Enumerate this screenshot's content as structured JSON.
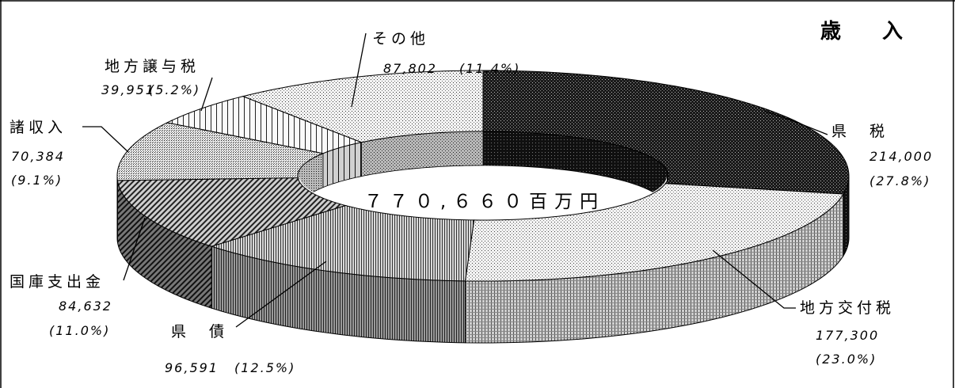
{
  "chart_data": {
    "type": "pie",
    "variant": "donut-3d",
    "title": "歳　　入",
    "center_label": "７７０,６６０百万円",
    "series": [
      {
        "name": "県　税",
        "value": 214000,
        "value_label": "214,000",
        "percent_label": "(27.8%)",
        "fill": "dark-cross"
      },
      {
        "name": "地方交付税",
        "value": 177300,
        "value_label": "177,300",
        "percent_label": "(23.0%)",
        "fill": "light-grid"
      },
      {
        "name": "県　債",
        "value": 96591,
        "value_label": "96,591",
        "percent_label": "(12.5%)",
        "fill": "vertical-lines"
      },
      {
        "name": "国庫支出金",
        "value": 84632,
        "value_label": "84,632",
        "percent_label": "(11.0%)",
        "fill": "diagonal-lines"
      },
      {
        "name": "諸収入",
        "value": 70384,
        "value_label": "70,384",
        "percent_label": "(9.1%)",
        "fill": "small-dots"
      },
      {
        "name": "地方譲与税",
        "value": 39951,
        "value_label": "39,951",
        "percent_label": "(5.2%)",
        "fill": "sparse-vertical"
      },
      {
        "name": "その他",
        "value": 87802,
        "value_label": "87,802",
        "percent_label": "(11.4%)",
        "fill": "fine-dots"
      }
    ]
  }
}
